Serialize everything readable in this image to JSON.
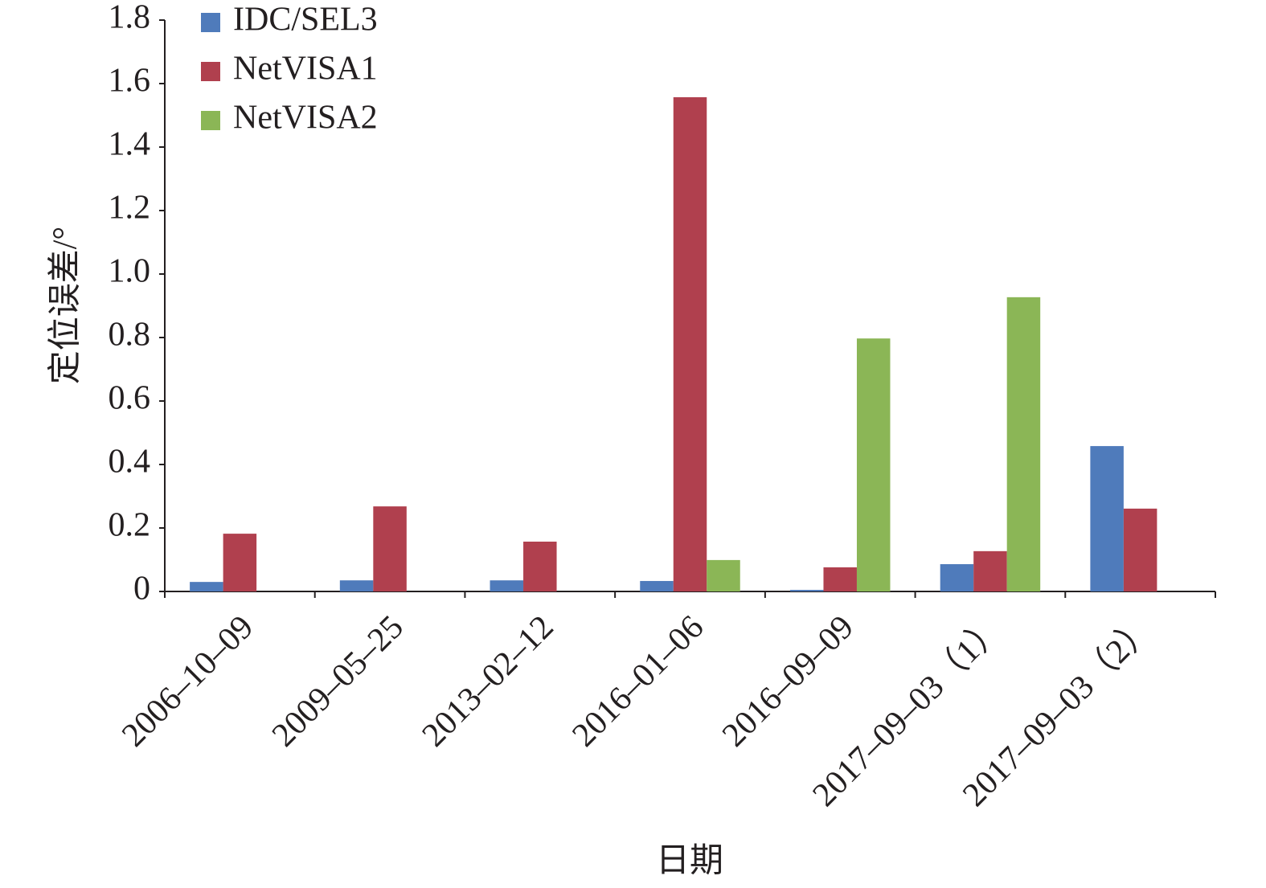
{
  "chart_data": {
    "type": "bar",
    "x_label": "日期",
    "y_label": "定位误差/°",
    "categories": [
      "2006–10–09",
      "2009–05–25",
      "2013–02–12",
      "2016–01–06",
      "2016–09–09",
      "2017–09–03（1）",
      "2017–09–03（2）"
    ],
    "series": [
      {
        "name": "IDC/SEL3",
        "color": "#4f7bbb",
        "values": [
          0.03,
          0.035,
          0.035,
          0.033,
          0.005,
          0.086,
          0.458
        ]
      },
      {
        "name": "NetVISA1",
        "color": "#b0404e",
        "values": [
          0.182,
          0.268,
          0.157,
          1.557,
          0.076,
          0.127,
          0.261
        ]
      },
      {
        "name": "NetVISA2",
        "color": "#8bb656",
        "values": [
          null,
          null,
          null,
          0.099,
          0.797,
          0.927,
          null
        ]
      }
    ],
    "ylim": [
      0,
      1.8
    ],
    "yticks": [
      0,
      0.2,
      0.4,
      0.6,
      0.8,
      {
        "value": 1,
        "label": "1.0"
      },
      1.2,
      1.4,
      1.6,
      1.8
    ],
    "legend": "upper left"
  }
}
